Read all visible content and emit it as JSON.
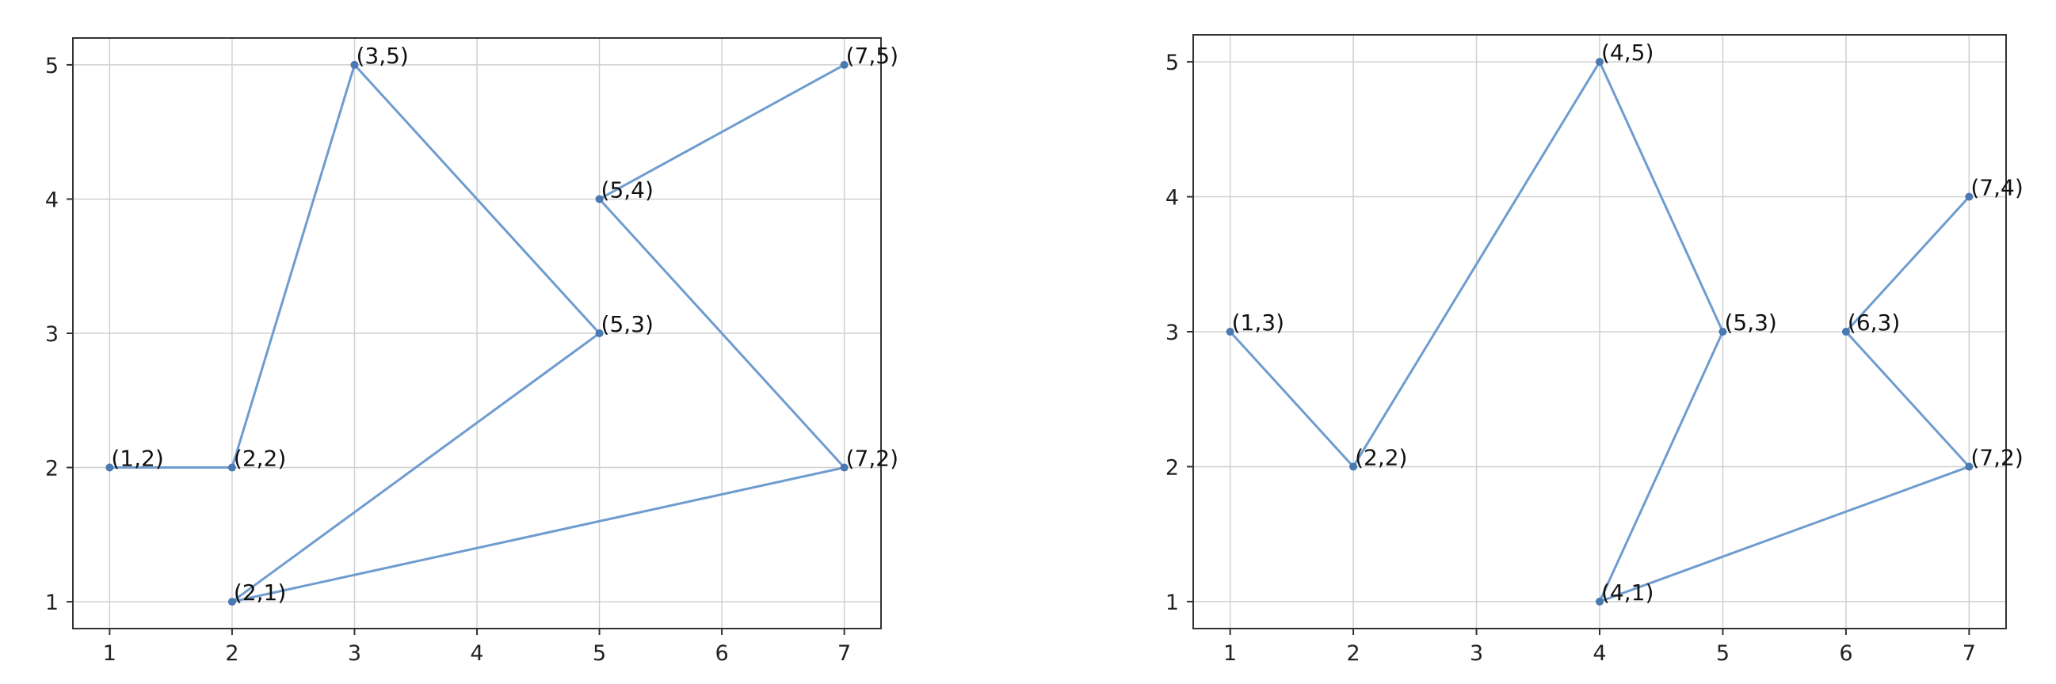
{
  "chart_data": [
    {
      "type": "line",
      "title": "",
      "xlabel": "",
      "ylabel": "",
      "xlim": [
        0.7,
        7.3
      ],
      "ylim": [
        0.8,
        5.2
      ],
      "xticks": [
        1,
        2,
        3,
        4,
        5,
        6,
        7
      ],
      "yticks": [
        1,
        2,
        3,
        4,
        5
      ],
      "grid": true,
      "series": [
        {
          "color": "#6f9ccf",
          "points": [
            {
              "x": 1,
              "y": 2,
              "label": "(1,2)"
            },
            {
              "x": 2,
              "y": 2,
              "label": "(2,2)"
            },
            {
              "x": 3,
              "y": 5,
              "label": "(3,5)"
            },
            {
              "x": 5,
              "y": 3,
              "label": "(5,3)"
            },
            {
              "x": 2,
              "y": 1,
              "label": "(2,1)"
            },
            {
              "x": 7,
              "y": 2,
              "label": "(7,2)"
            },
            {
              "x": 5,
              "y": 4,
              "label": "(5,4)"
            },
            {
              "x": 7,
              "y": 5,
              "label": "(7,5)"
            }
          ]
        }
      ]
    },
    {
      "type": "line",
      "title": "",
      "xlabel": "",
      "ylabel": "",
      "xlim": [
        0.7,
        7.3
      ],
      "ylim": [
        0.8,
        5.2
      ],
      "xticks": [
        1,
        2,
        3,
        4,
        5,
        6,
        7
      ],
      "yticks": [
        1,
        2,
        3,
        4,
        5
      ],
      "grid": true,
      "series": [
        {
          "color": "#6f9ccf",
          "points": [
            {
              "x": 1,
              "y": 3,
              "label": "(1,3)"
            },
            {
              "x": 2,
              "y": 2,
              "label": "(2,2)"
            },
            {
              "x": 4,
              "y": 5,
              "label": "(4,5)"
            },
            {
              "x": 5,
              "y": 3,
              "label": "(5,3)"
            },
            {
              "x": 4,
              "y": 1,
              "label": "(4,1)"
            },
            {
              "x": 7,
              "y": 2,
              "label": "(7,2)"
            },
            {
              "x": 6,
              "y": 3,
              "label": "(6,3)"
            },
            {
              "x": 7,
              "y": 4,
              "label": "(7,4)"
            }
          ]
        }
      ]
    }
  ]
}
